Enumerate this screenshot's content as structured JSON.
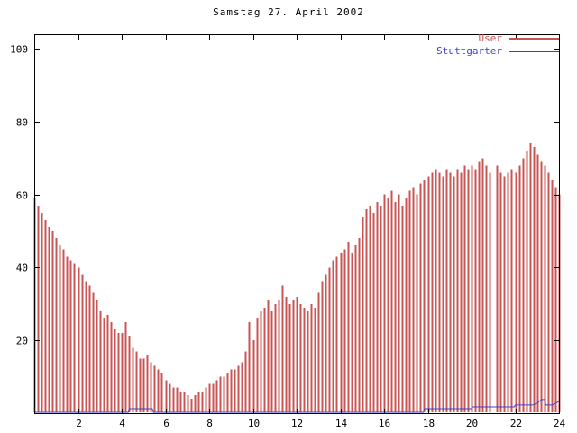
{
  "chart_data": {
    "type": "bar",
    "title": "Samstag 27. April 2002",
    "xlabel": "",
    "ylabel": "",
    "xlim": [
      0,
      24
    ],
    "ylim": [
      0,
      104
    ],
    "x_ticks": [
      2,
      4,
      6,
      8,
      10,
      12,
      14,
      16,
      18,
      20,
      22,
      24
    ],
    "y_ticks": [
      20,
      40,
      60,
      80,
      100
    ],
    "grid": false,
    "legend_position": "top-right",
    "colors": {
      "axis": "#000000",
      "background": "#ffffff",
      "user": "#c85454",
      "stuttgarter": "#4141c8"
    },
    "series": [
      {
        "name": "User",
        "type": "impulses",
        "color": "#c85454",
        "x_start": 0,
        "x_step": 0.1666667,
        "values": [
          59,
          57,
          55,
          53,
          51,
          50,
          48,
          46,
          45,
          43,
          42,
          41,
          40,
          38,
          36,
          35,
          33,
          31,
          28,
          26,
          27,
          25,
          23,
          22,
          22,
          25,
          21,
          18,
          17,
          15,
          15,
          16,
          14,
          13,
          12,
          11,
          9,
          8,
          7,
          7,
          6,
          6,
          5,
          4,
          5,
          6,
          6,
          7,
          8,
          8,
          9,
          10,
          10,
          11,
          12,
          12,
          13,
          14,
          17,
          25,
          20,
          26,
          28,
          29,
          31,
          28,
          30,
          31,
          35,
          32,
          30,
          31,
          32,
          30,
          29,
          28,
          30,
          29,
          33,
          36,
          38,
          40,
          42,
          43,
          44,
          45,
          47,
          44,
          46,
          48,
          54,
          56,
          57,
          55,
          58,
          57,
          60,
          59,
          61,
          58,
          60,
          57,
          59,
          61,
          62,
          60,
          63,
          64,
          65,
          66,
          67,
          66,
          65,
          67,
          66,
          65,
          67,
          66,
          68,
          67,
          68,
          67,
          69,
          70,
          68,
          66,
          0,
          68,
          66,
          65,
          66,
          67,
          66,
          68,
          70,
          72,
          74,
          73,
          71,
          69,
          68,
          66,
          64,
          62,
          60
        ]
      },
      {
        "name": "Stuttgarter",
        "type": "line",
        "color": "#4141c8",
        "x": [
          0,
          4.3,
          4.35,
          5.4,
          5.45,
          17.8,
          17.85,
          20.0,
          20.05,
          21.95,
          22.0,
          22.8,
          23.0,
          23.2,
          23.35,
          23.4,
          23.7,
          24.0
        ],
        "values": [
          0,
          0,
          1,
          1,
          0,
          0,
          1,
          1,
          1.5,
          1.5,
          2,
          2,
          2.5,
          3.5,
          3.5,
          2,
          2,
          3
        ]
      }
    ]
  }
}
